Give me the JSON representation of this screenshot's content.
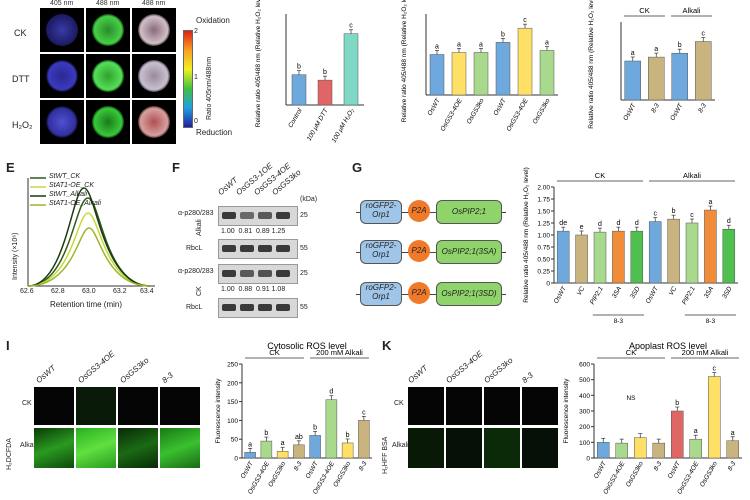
{
  "panelA": {
    "col_labels": [
      "405 nm",
      "488 nm",
      "488 nm"
    ],
    "row_labels": [
      "CK",
      "DTT",
      "H₂O₂"
    ],
    "colorbar_top": "Oxidation",
    "colorbar_bottom": "Reduction",
    "colorbar_axis": "Ratio 405nm/488nm",
    "colorbar_ticks": [
      "2",
      "1",
      "0"
    ]
  },
  "panelE": {
    "letter": "E",
    "legend": [
      "StWT_CK",
      "StAT1-OE_CK",
      "StWT_Alkali",
      "StAT1-OE_Alkali"
    ],
    "ylabel": "Intensity (×10⁶)",
    "xlabel": "Retention time (min)",
    "xticks": [
      "62.6",
      "62.8",
      "63.0",
      "63.2",
      "63.4"
    ],
    "yticks": [
      "0",
      "1",
      "2",
      "3",
      "4",
      "5",
      "6"
    ]
  },
  "panelF": {
    "letter": "F",
    "lanes": [
      "OsWT",
      "OsGS3-1OE",
      "OsGS3-4OE",
      "OsGS3ko"
    ],
    "kda_label": "(kDa)",
    "alkali_label": "Alkali",
    "ck_label": "CK",
    "alkali_row1": "α-p280/283",
    "alkali_row1_kda": "25",
    "alkali_vals": "1.00  0.81  0.89 1.25",
    "alkali_row2": "RbcL",
    "alkali_row2_kda": "55",
    "ck_row1": "α-p280/283",
    "ck_row1_kda": "25",
    "ck_vals": "1.00  0.88  0.91 1.08",
    "ck_row2": "RbcL",
    "ck_row2_kda": "55"
  },
  "panelG": {
    "letter": "G",
    "constructs": [
      {
        "left": "roGFP2-Orp1",
        "mid": "P2A",
        "right": "OsPIP2;1"
      },
      {
        "left": "roGFP2-Orp1",
        "mid": "P2A",
        "right": "OsPIP2;1(3SA)"
      },
      {
        "left": "roGFP2-Orp1",
        "mid": "P2A",
        "right": "OsPIP2;1(3SD)"
      }
    ]
  },
  "panelI": {
    "letter": "I",
    "cols": [
      "OsWT",
      "OsGS3-4OE",
      "OsGS3ko",
      "8-3"
    ],
    "rows": [
      "CK",
      "Alkali"
    ],
    "stain": "H₂DCFDA"
  },
  "panelK": {
    "letter": "K",
    "cols": [
      "OsWT",
      "OsGS3-4OE",
      "OsGS3ko",
      "8-3"
    ],
    "rows": [
      "CK",
      "Alkali"
    ],
    "stain": "H₂HFF BSA"
  },
  "charts": {
    "B": {
      "type": "bar",
      "ylabel": "Relative ratio 405/488 nm (Relative H₂O₂ level)",
      "categories": [
        "Control",
        "100 μM DTT",
        "100 μM H₂O₂"
      ],
      "values": [
        1.0,
        0.82,
        2.35
      ],
      "letters": [
        "b",
        "b",
        "c"
      ],
      "colors": [
        "#6fa8dc",
        "#e06666",
        "#7fd8c4"
      ],
      "ylim": [
        0,
        3
      ]
    },
    "C": {
      "type": "bar",
      "ylabel": "Relative ratio 405/488 nm (Relative H₂O₂ level)",
      "categories": [
        "OsWT",
        "OsGS3-4OE",
        "OsGS3ko",
        "OsWT",
        "OsGS3-4OE",
        "OsGS3ko"
      ],
      "values": [
        1.0,
        1.05,
        1.05,
        1.3,
        1.65,
        1.1
      ],
      "letters": [
        "a",
        "a",
        "a",
        "b",
        "c",
        "a"
      ],
      "colors": [
        "#6fa8dc",
        "#ffe066",
        "#a8d98c",
        "#6fa8dc",
        "#ffe066",
        "#a8d98c"
      ],
      "ylim": [
        0,
        2
      ]
    },
    "D": {
      "type": "bar",
      "ylabel": "Relative ratio 405/488 nm (Relative H₂O₂ level)",
      "groups": [
        "CK",
        "Alkali"
      ],
      "categories": [
        "OsWT",
        "8-3",
        "OsWT",
        "8-3"
      ],
      "values": [
        1.0,
        1.1,
        1.2,
        1.5
      ],
      "letters": [
        "a",
        "a",
        "b",
        "c"
      ],
      "colors": [
        "#6fa8dc",
        "#c9b37e",
        "#6fa8dc",
        "#c9b37e"
      ],
      "ylim": [
        0,
        2
      ]
    },
    "H": {
      "type": "bar",
      "ylabel": "Relative ratio 405/488 nm (Relative H₂O₂ level)",
      "groups": [
        "CK",
        "Alkali"
      ],
      "categories": [
        "OsWT",
        "VC",
        "PIP2;1",
        "3SA",
        "3SD",
        "OsWT",
        "VC",
        "PIP2;1",
        "3SA",
        "3SD"
      ],
      "values": [
        1.08,
        1.0,
        1.06,
        1.08,
        1.08,
        1.28,
        1.33,
        1.25,
        1.52,
        1.12
      ],
      "letters": [
        "de",
        "e",
        "d",
        "d",
        "d",
        "c",
        "b",
        "c",
        "a",
        "d"
      ],
      "colors": [
        "#6fa8dc",
        "#c9b37e",
        "#a8d98c",
        "#f08c3a",
        "#4fbf4f",
        "#6fa8dc",
        "#c9b37e",
        "#a8d98c",
        "#f08c3a",
        "#4fbf4f"
      ],
      "ylim": [
        0,
        2.0
      ],
      "yticks": [
        "0",
        "0.25",
        "0.50",
        "0.75",
        "1.00",
        "1.25",
        "1.50",
        "1.75",
        "2.00"
      ],
      "subgroup_label": "8-3"
    },
    "J": {
      "type": "bar",
      "title": "Cytosolic ROS level",
      "ylabel": "Fluorescence intensity",
      "groups": [
        "CK",
        "200 mM Alkali"
      ],
      "categories": [
        "OsWT",
        "OsGS3-4OE",
        "OsGS3ko",
        "8-3",
        "OsWT",
        "OsGS3-4OE",
        "OsGS3ko",
        "8-3"
      ],
      "values": [
        15,
        45,
        18,
        35,
        60,
        155,
        40,
        100
      ],
      "letters": [
        "a",
        "b",
        "a",
        "ab",
        "b",
        "d",
        "b",
        "c"
      ],
      "colors": [
        "#6fa8dc",
        "#a8d98c",
        "#ffe066",
        "#c9b37e",
        "#6fa8dc",
        "#a8d98c",
        "#ffe066",
        "#c9b37e"
      ],
      "ylim": [
        0,
        250
      ],
      "yticks": [
        "0",
        "50",
        "100",
        "150",
        "200",
        "250"
      ]
    },
    "L": {
      "type": "bar",
      "title": "Apoplast ROS level",
      "ylabel": "Fluorescence intensity",
      "groups": [
        "CK",
        "200 mM Alkali"
      ],
      "categories": [
        "OsWT",
        "OsGS3-4OE",
        "OsGS3ko",
        "8-3",
        "OsWT",
        "OsGS3-4OE",
        "OsGS3ko",
        "8-3"
      ],
      "values": [
        100,
        95,
        130,
        95,
        300,
        120,
        520,
        110
      ],
      "letters": [
        "",
        "",
        "",
        "",
        "b",
        "a",
        "c",
        "a"
      ],
      "ns_label": "NS",
      "colors": [
        "#6fa8dc",
        "#a8d98c",
        "#ffe066",
        "#c9b37e",
        "#e06666",
        "#a8d98c",
        "#ffe066",
        "#c9b37e"
      ],
      "ylim": [
        0,
        600
      ],
      "yticks": [
        "0",
        "100",
        "200",
        "300",
        "400",
        "500",
        "600"
      ]
    }
  },
  "chart_data": [
    {
      "id": "B",
      "type": "bar",
      "categories": [
        "Control",
        "100 μM DTT",
        "100 μM H₂O₂"
      ],
      "values": [
        1.0,
        0.82,
        2.35
      ]
    },
    {
      "id": "C",
      "type": "bar",
      "categories": [
        "OsWT",
        "OsGS3-4OE",
        "OsGS3ko",
        "OsWT",
        "OsGS3-4OE",
        "OsGS3ko"
      ],
      "values": [
        1.0,
        1.05,
        1.05,
        1.3,
        1.65,
        1.1
      ]
    },
    {
      "id": "D",
      "type": "bar",
      "categories": [
        "OsWT",
        "8-3",
        "OsWT",
        "8-3"
      ],
      "values": [
        1.0,
        1.1,
        1.2,
        1.5
      ]
    },
    {
      "id": "H",
      "type": "bar",
      "categories": [
        "OsWT",
        "VC",
        "PIP2;1",
        "3SA",
        "3SD",
        "OsWT",
        "VC",
        "PIP2;1",
        "3SA",
        "3SD"
      ],
      "values": [
        1.08,
        1.0,
        1.06,
        1.08,
        1.08,
        1.28,
        1.33,
        1.25,
        1.52,
        1.12
      ]
    },
    {
      "id": "J",
      "type": "bar",
      "categories": [
        "OsWT",
        "OsGS3-4OE",
        "OsGS3ko",
        "8-3",
        "OsWT",
        "OsGS3-4OE",
        "OsGS3ko",
        "8-3"
      ],
      "values": [
        15,
        45,
        18,
        35,
        60,
        155,
        40,
        100
      ]
    },
    {
      "id": "L",
      "type": "bar",
      "categories": [
        "OsWT",
        "OsGS3-4OE",
        "OsGS3ko",
        "8-3",
        "OsWT",
        "OsGS3-4OE",
        "OsGS3ko",
        "8-3"
      ],
      "values": [
        100,
        95,
        130,
        95,
        300,
        120,
        520,
        110
      ]
    }
  ]
}
